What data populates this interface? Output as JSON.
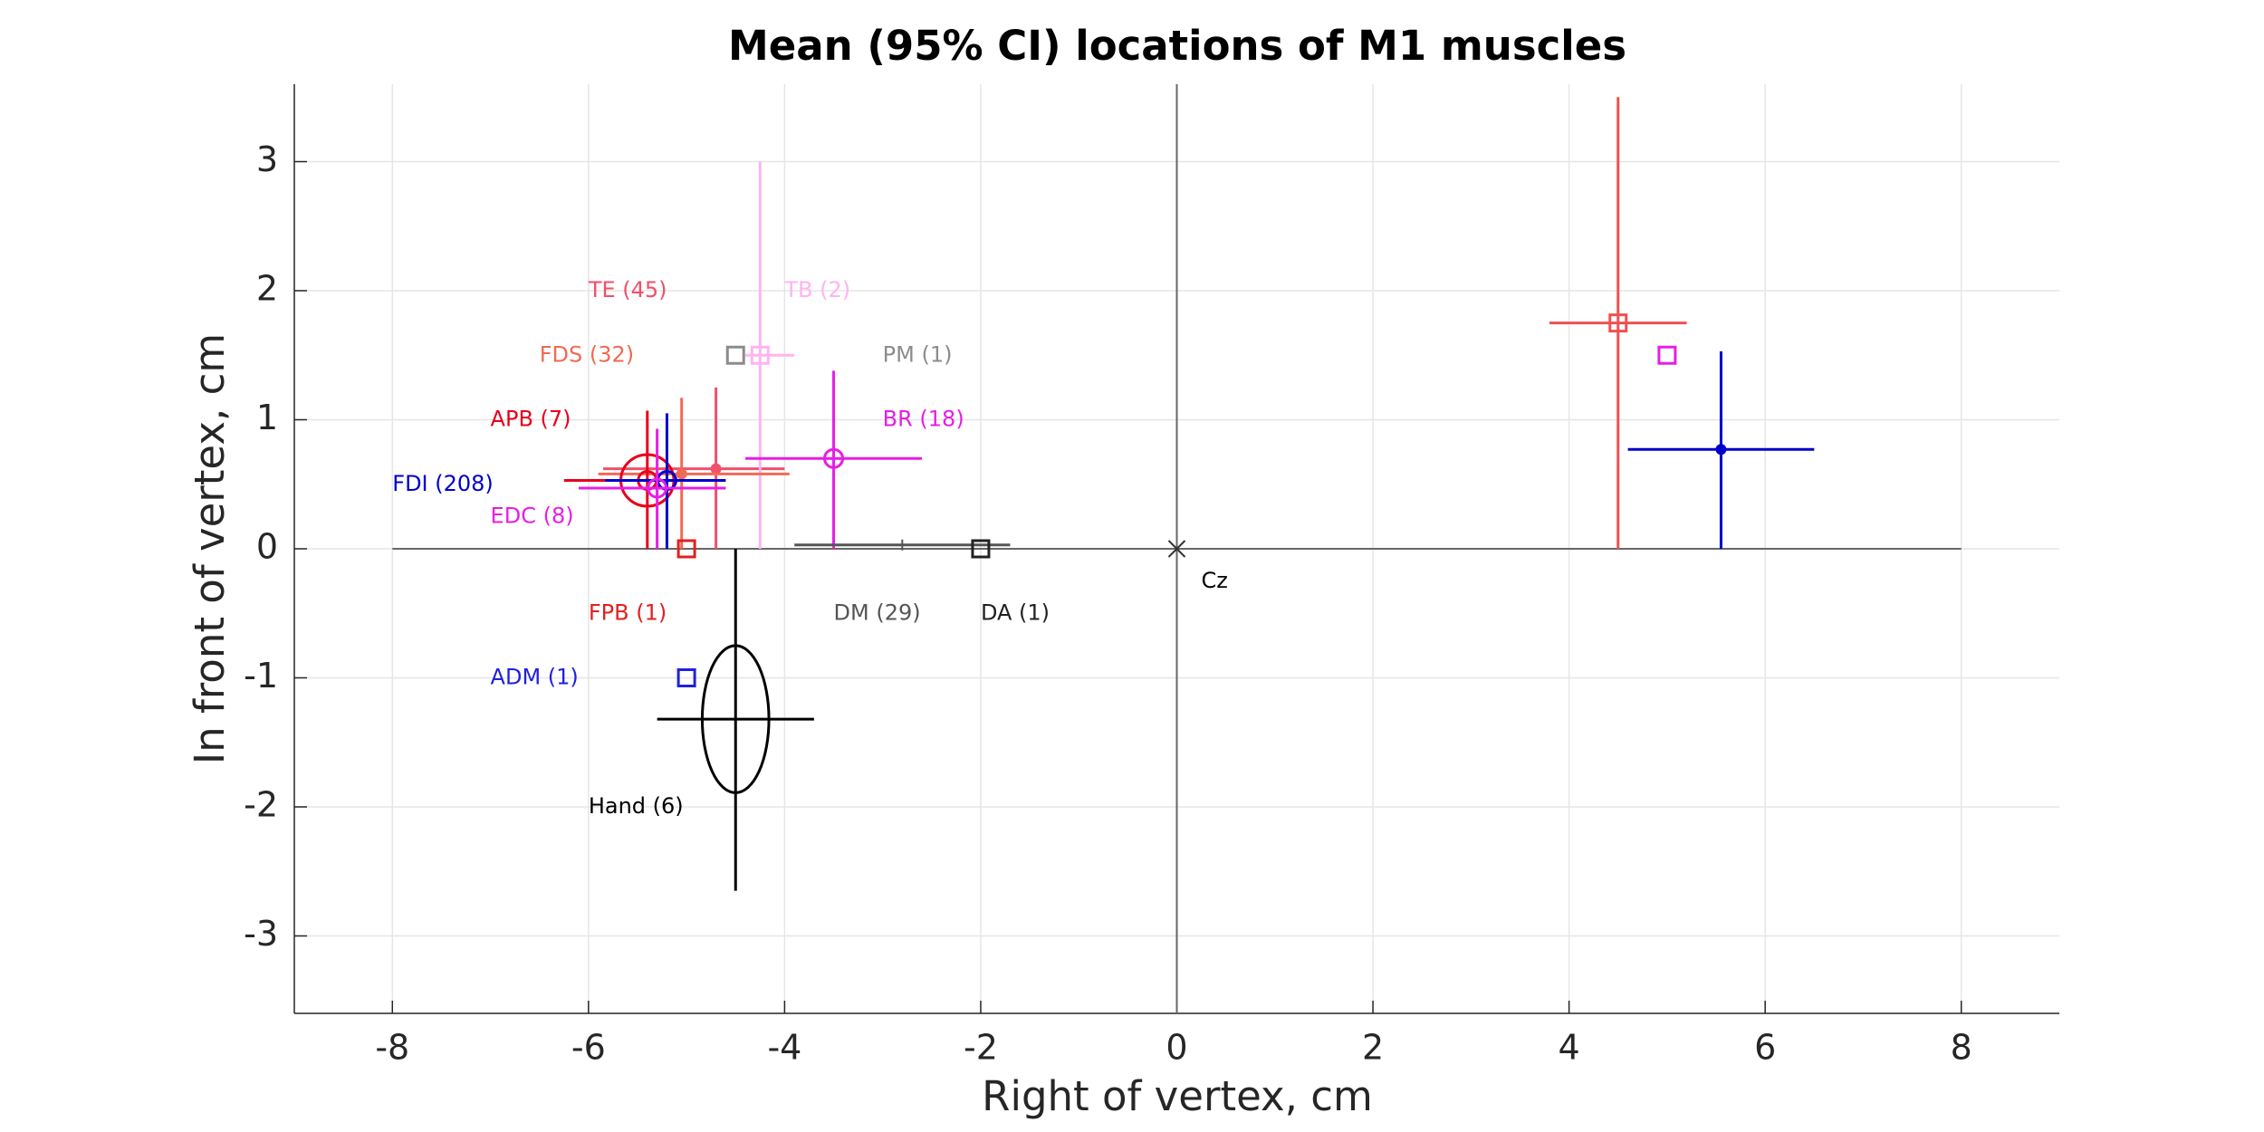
{
  "chart_data": {
    "type": "errorbar-scatter",
    "title": "Mean (95% CI) locations of M1 muscles",
    "xlabel": "Right of vertex, cm",
    "ylabel": "In front of vertex, cm",
    "xlim": [
      -9,
      9
    ],
    "ylim": [
      -3.6,
      3.6
    ],
    "xticks": [
      -8,
      -6,
      -4,
      -2,
      0,
      2,
      4,
      6,
      8
    ],
    "yticks": [
      -3,
      -2,
      -1,
      0,
      1,
      2,
      3
    ],
    "grid": true,
    "series": [
      {
        "name": "TE (45)",
        "color": "#f0506a",
        "marker": "dot",
        "x": -4.7,
        "y": 0.62,
        "xlo": -5.85,
        "xhi": -4.0,
        "ylo": 0,
        "yhi": 1.25
      },
      {
        "name": "TB (2)",
        "color": "#ffb4f0",
        "marker": "square",
        "x": -4.25,
        "y": 1.5,
        "xlo": -4.4,
        "xhi": -3.9,
        "ylo": 0,
        "yhi": 3.0
      },
      {
        "name": "FDS (32)",
        "color": "#f06a55",
        "marker": "dot",
        "x": -5.05,
        "y": 0.58,
        "xlo": -5.9,
        "xhi": -3.95,
        "ylo": 0,
        "yhi": 1.17
      },
      {
        "name": "PM (1)",
        "color": "#8c8c8c",
        "marker": "square",
        "x": -4.5,
        "y": 1.5
      },
      {
        "name": "APB (7)",
        "color": "#e8001c",
        "marker": "circle",
        "x": -5.4,
        "y": 0.53,
        "xlo": -6.25,
        "xhi": -4.9,
        "ylo": 0,
        "yhi": 1.07,
        "ellipse": [
          0.27,
          0.2
        ]
      },
      {
        "name": "BR (18)",
        "color": "#e61ee6",
        "marker": "circle",
        "x": -3.5,
        "y": 0.7,
        "xlo": -4.4,
        "xhi": -2.6,
        "ylo": 0,
        "yhi": 1.38
      },
      {
        "name": "FDI (208)",
        "color": "#0000cc",
        "marker": "circle",
        "x": -5.2,
        "y": 0.53,
        "xlo": -5.83,
        "xhi": -4.6,
        "ylo": 0,
        "yhi": 1.05
      },
      {
        "name": "EDC (8)",
        "color": "#e61ee6",
        "marker": "circle",
        "x": -5.3,
        "y": 0.47,
        "xlo": -6.1,
        "xhi": -4.6,
        "ylo": 0,
        "yhi": 0.93
      },
      {
        "name": "FPB (1)",
        "color": "#e02020",
        "marker": "square",
        "x": -5.0,
        "y": 0
      },
      {
        "name": "DM (29)",
        "color": "#555555",
        "marker": "plus",
        "x": -2.8,
        "y": 0.03,
        "xlo": -3.9,
        "xhi": -1.7
      },
      {
        "name": "DA (1)",
        "color": "#222222",
        "marker": "square",
        "x": -2.0,
        "y": 0
      },
      {
        "name": "ADM (1)",
        "color": "#2020e0",
        "marker": "square",
        "x": -5.0,
        "y": -1.0
      },
      {
        "name": "Hand (6)",
        "color": "#000000",
        "marker": "plus",
        "x": -4.5,
        "y": -1.32,
        "xlo": -5.3,
        "xhi": -3.7,
        "ylo": -2.65,
        "yhi": 0,
        "ellipse": [
          0.34,
          0.57
        ]
      },
      {
        "color": "#f05050",
        "marker": "square",
        "x": 4.5,
        "y": 1.75,
        "xlo": 3.8,
        "xhi": 5.2,
        "ylo": 0,
        "yhi": 3.5
      },
      {
        "color": "#e61ee6",
        "marker": "square",
        "x": 5.0,
        "y": 1.5
      },
      {
        "color": "#0000cc",
        "marker": "dot",
        "x": 5.55,
        "y": 0.77,
        "xlo": 4.6,
        "xhi": 6.5,
        "ylo": 0,
        "yhi": 1.53
      }
    ],
    "reference": {
      "name": "Cz",
      "x": 0,
      "y": 0
    }
  }
}
